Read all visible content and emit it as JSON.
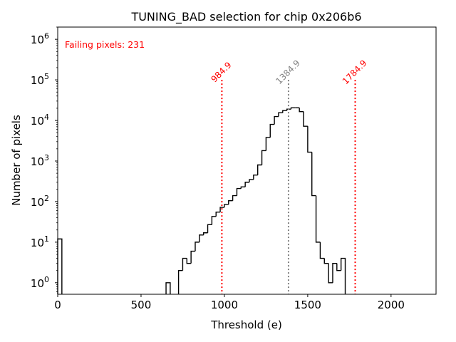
{
  "chart_data": {
    "type": "histogram",
    "title": "TUNING_BAD selection for chip 0x206b6",
    "xlabel": "Threshold (e)",
    "ylabel": "Number of pixels",
    "xlim": [
      0,
      2270
    ],
    "ylim": [
      0.52,
      2000000
    ],
    "yscale": "log",
    "grid": false,
    "xticks": [
      0,
      500,
      1000,
      1500,
      2000
    ],
    "xtick_labels": [
      "0",
      "500",
      "1000",
      "1500",
      "2000"
    ],
    "yticks": [
      1,
      10,
      100,
      1000,
      10000,
      100000,
      1000000
    ],
    "ytick_labels": [
      {
        "base": "10",
        "exp": "0"
      },
      {
        "base": "10",
        "exp": "1"
      },
      {
        "base": "10",
        "exp": "2"
      },
      {
        "base": "10",
        "exp": "3"
      },
      {
        "base": "10",
        "exp": "4"
      },
      {
        "base": "10",
        "exp": "5"
      },
      {
        "base": "10",
        "exp": "6"
      }
    ],
    "bins": [
      {
        "x0": 0,
        "x1": 25,
        "count": 12
      },
      {
        "x0": 650,
        "x1": 675,
        "count": 1
      },
      {
        "x0": 725,
        "x1": 750,
        "count": 2
      },
      {
        "x0": 750,
        "x1": 775,
        "count": 4
      },
      {
        "x0": 775,
        "x1": 800,
        "count": 3
      },
      {
        "x0": 800,
        "x1": 825,
        "count": 6
      },
      {
        "x0": 825,
        "x1": 850,
        "count": 10
      },
      {
        "x0": 850,
        "x1": 875,
        "count": 15
      },
      {
        "x0": 875,
        "x1": 900,
        "count": 17
      },
      {
        "x0": 900,
        "x1": 925,
        "count": 27
      },
      {
        "x0": 925,
        "x1": 950,
        "count": 43
      },
      {
        "x0": 950,
        "x1": 975,
        "count": 55
      },
      {
        "x0": 975,
        "x1": 1000,
        "count": 72
      },
      {
        "x0": 1000,
        "x1": 1025,
        "count": 85
      },
      {
        "x0": 1025,
        "x1": 1050,
        "count": 105
      },
      {
        "x0": 1050,
        "x1": 1075,
        "count": 140
      },
      {
        "x0": 1075,
        "x1": 1100,
        "count": 210
      },
      {
        "x0": 1100,
        "x1": 1125,
        "count": 230
      },
      {
        "x0": 1125,
        "x1": 1150,
        "count": 300
      },
      {
        "x0": 1150,
        "x1": 1175,
        "count": 350
      },
      {
        "x0": 1175,
        "x1": 1200,
        "count": 450
      },
      {
        "x0": 1200,
        "x1": 1225,
        "count": 800
      },
      {
        "x0": 1225,
        "x1": 1250,
        "count": 1800
      },
      {
        "x0": 1250,
        "x1": 1275,
        "count": 3800
      },
      {
        "x0": 1275,
        "x1": 1300,
        "count": 8000
      },
      {
        "x0": 1300,
        "x1": 1325,
        "count": 12500
      },
      {
        "x0": 1325,
        "x1": 1350,
        "count": 15500
      },
      {
        "x0": 1350,
        "x1": 1375,
        "count": 17500
      },
      {
        "x0": 1375,
        "x1": 1400,
        "count": 19000
      },
      {
        "x0": 1400,
        "x1": 1425,
        "count": 20500
      },
      {
        "x0": 1425,
        "x1": 1450,
        "count": 20500
      },
      {
        "x0": 1450,
        "x1": 1475,
        "count": 16500
      },
      {
        "x0": 1475,
        "x1": 1500,
        "count": 7200
      },
      {
        "x0": 1500,
        "x1": 1525,
        "count": 1650
      },
      {
        "x0": 1525,
        "x1": 1550,
        "count": 140
      },
      {
        "x0": 1550,
        "x1": 1575,
        "count": 10
      },
      {
        "x0": 1575,
        "x1": 1600,
        "count": 4
      },
      {
        "x0": 1600,
        "x1": 1625,
        "count": 3
      },
      {
        "x0": 1625,
        "x1": 1650,
        "count": 1
      },
      {
        "x0": 1650,
        "x1": 1675,
        "count": 3
      },
      {
        "x0": 1675,
        "x1": 1700,
        "count": 2
      },
      {
        "x0": 1700,
        "x1": 1725,
        "count": 4
      }
    ],
    "vlines": [
      {
        "x": 984.9,
        "label": "984.9",
        "color": "#ff0000",
        "style": "dotted"
      },
      {
        "x": 1384.9,
        "label": "1384.9",
        "color": "#808080",
        "style": "dotted"
      },
      {
        "x": 1784.9,
        "label": "1784.9",
        "color": "#ff0000",
        "style": "dotted"
      }
    ],
    "vline_top": 100000,
    "annotations": [
      {
        "text": "Failing pixels: 231",
        "color": "#ff0000",
        "position": "top-left"
      }
    ]
  }
}
